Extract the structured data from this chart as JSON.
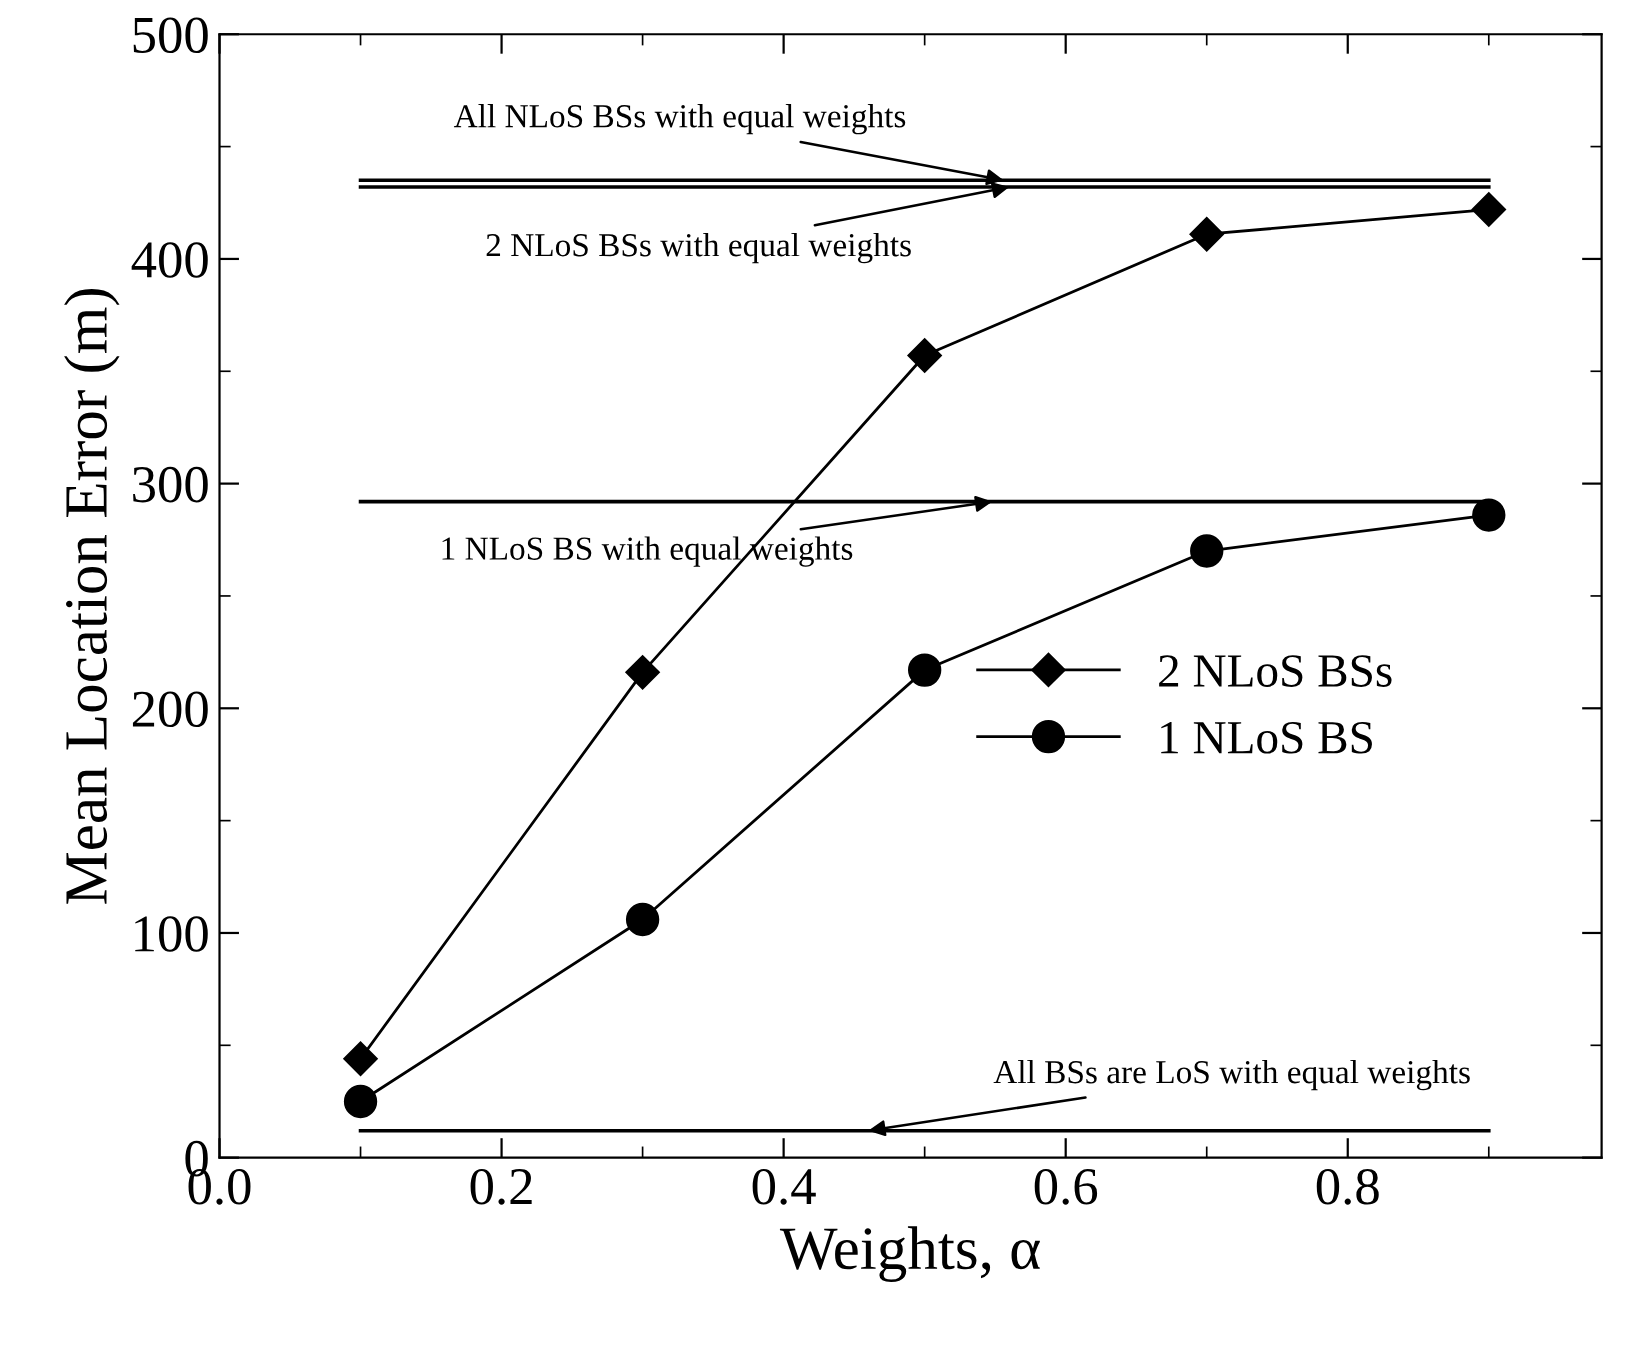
{
  "chart_data": {
    "type": "line",
    "xlabel": "Weights, α",
    "ylabel": "Mean Location Error (m)",
    "xlim": [
      0,
      0.98
    ],
    "xticks": [
      {
        "value": 0,
        "label": "0.0"
      },
      0.2,
      0.4,
      0.6,
      0.8
    ],
    "ylim": [
      0,
      500
    ],
    "yticks": [
      0,
      100,
      200,
      300,
      400,
      500
    ],
    "legend": "right",
    "grid": false,
    "series": [
      {
        "name": "2 NLoS BSs",
        "color": "#000000",
        "marker": "diamond",
        "x": [
          0.1,
          0.3,
          0.5,
          0.7,
          0.9
        ],
        "values": [
          44,
          216,
          357,
          411,
          422
        ]
      },
      {
        "name": "1 NLoS BS",
        "color": "#000000",
        "marker": "circle",
        "x": [
          0.1,
          0.3,
          0.5,
          0.7,
          0.9
        ],
        "values": [
          25,
          106,
          217,
          270,
          286
        ]
      },
      {
        "name": "All NLoS BSs with equal weights",
        "color": "#000000",
        "marker": "none",
        "x": [
          0.1,
          0.9
        ],
        "values": [
          435,
          435
        ]
      },
      {
        "name": "2 NLoS BSs with equal weights",
        "color": "#000000",
        "marker": "none",
        "x": [
          0.1,
          0.9
        ],
        "values": [
          432,
          432
        ]
      },
      {
        "name": "1 NLoS BS with equal weights",
        "color": "#000000",
        "marker": "none",
        "x": [
          0.1,
          0.9
        ],
        "values": [
          292,
          292
        ]
      },
      {
        "name": "All BSs are LoS with equal weights",
        "color": "#000000",
        "marker": "none",
        "x": [
          0.1,
          0.9
        ],
        "values": [
          12,
          12
        ]
      }
    ]
  }
}
